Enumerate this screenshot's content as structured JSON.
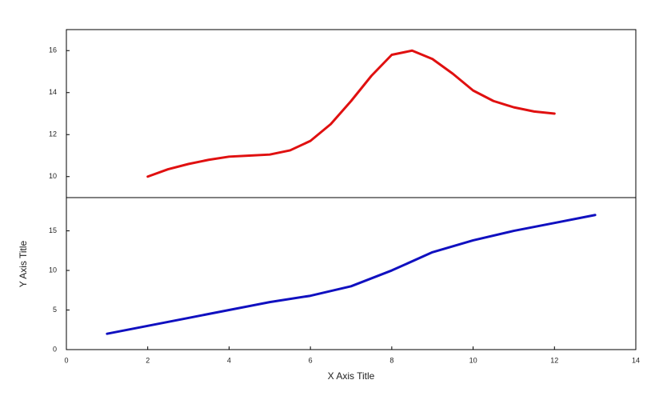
{
  "chart_data": [
    {
      "type": "line",
      "x": [
        2,
        2.5,
        3,
        3.5,
        4,
        4.5,
        5,
        5.5,
        6,
        6.5,
        7,
        7.5,
        8,
        8.5,
        9,
        9.5,
        10,
        10.5,
        11,
        11.5,
        12
      ],
      "series": [
        {
          "color": "#e01010",
          "values": [
            10,
            10.35,
            10.6,
            10.8,
            10.95,
            11,
            11.05,
            11.25,
            11.7,
            12.5,
            13.6,
            14.8,
            15.8,
            16,
            15.6,
            14.9,
            14.1,
            13.6,
            13.3,
            13.1,
            13
          ]
        }
      ],
      "xlim": [
        0,
        14
      ],
      "ylim": [
        9,
        17
      ],
      "yticks": [
        10,
        12,
        14,
        16
      ]
    },
    {
      "type": "line",
      "x": [
        1,
        2,
        3,
        4,
        5,
        6,
        7,
        8,
        9,
        10,
        11,
        12,
        13
      ],
      "series": [
        {
          "color": "#1010c0",
          "values": [
            2,
            3,
            4,
            5,
            6,
            6.8,
            8,
            10,
            12.3,
            13.8,
            15,
            16,
            17
          ]
        }
      ],
      "xlim": [
        0,
        14
      ],
      "xticks": [
        0,
        2,
        4,
        6,
        8,
        10,
        12,
        14
      ],
      "ylim": [
        0,
        19.2
      ],
      "yticks": [
        0,
        5,
        10,
        15
      ],
      "x_label": "X Axis Title",
      "y_label": "Y Axis Title"
    }
  ]
}
